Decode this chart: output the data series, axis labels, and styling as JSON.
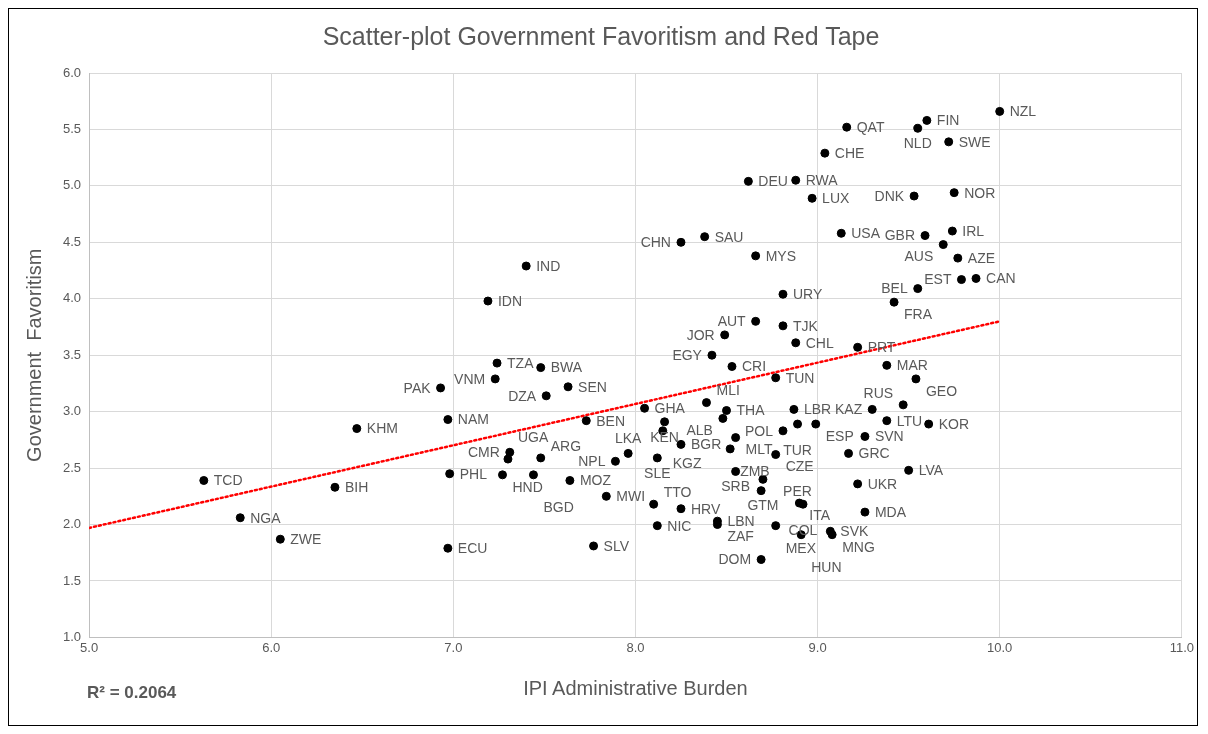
{
  "chart_data": {
    "type": "scatter",
    "title": "Scatter-plot Government Favoritism and Red Tape",
    "xlabel": "IPI Administrative Burden",
    "ylabel": "Government  Favoritism",
    "xlim": [
      5,
      11
    ],
    "xticks": [
      {
        "value": 5,
        "label": "5.0"
      },
      {
        "value": 6,
        "label": "6.0"
      },
      {
        "value": 7,
        "label": "7.0"
      },
      {
        "value": 8,
        "label": "8.0"
      },
      {
        "value": 9,
        "label": "9.0"
      },
      {
        "value": 10,
        "label": "10.0"
      },
      {
        "value": 11,
        "label": "11.0"
      }
    ],
    "ylim": [
      1,
      6
    ],
    "yticks": [
      {
        "value": 1,
        "label": "1.0"
      },
      {
        "value": 1.5,
        "label": "1.5"
      },
      {
        "value": 2,
        "label": "2.0"
      },
      {
        "value": 2.5,
        "label": "2.5"
      },
      {
        "value": 3,
        "label": "3.0"
      },
      {
        "value": 3.5,
        "label": "3.5"
      },
      {
        "value": 4,
        "label": "4.0"
      },
      {
        "value": 4.5,
        "label": "4.5"
      },
      {
        "value": 5,
        "label": "5.0"
      },
      {
        "value": 5.5,
        "label": "5.5"
      },
      {
        "value": 6,
        "label": "6.0"
      }
    ],
    "grid": true,
    "legend": false,
    "marker": "circle",
    "annotations": [
      "R² = 0.2064"
    ],
    "series": [
      {
        "type": "scatter",
        "color": "#000000",
        "x": [
          10.0,
          9.6,
          9.16,
          9.55,
          9.72,
          9.04,
          8.62,
          8.88,
          8.97,
          9.53,
          9.75,
          9.13,
          8.38,
          8.25,
          9.59,
          9.74,
          9.69,
          9.77,
          9.79,
          9.87,
          8.66,
          7.4,
          7.19,
          8.81,
          9.55,
          9.42,
          8.66,
          8.81,
          8.49,
          8.88,
          9.22,
          8.42,
          7.24,
          7.48,
          8.53,
          7.23,
          6.93,
          7.63,
          7.51,
          8.77,
          9.38,
          9.54,
          8.05,
          8.39,
          8.5,
          8.48,
          8.87,
          9.47,
          9.3,
          9.38,
          9.61,
          8.99,
          8.89,
          8.81,
          9.26,
          6.97,
          6.47,
          7.73,
          8.16,
          8.15,
          8.25,
          8.55,
          8.52,
          7.96,
          8.12,
          7.89,
          8.77,
          9.17,
          7.31,
          7.3,
          7.48,
          6.98,
          7.27,
          7.44,
          7.64,
          7.84,
          5.63,
          6.35,
          5.83,
          6.05,
          6.97,
          7.77,
          9.5,
          8.55,
          8.7,
          8.69,
          9.22,
          8.9,
          8.92,
          9.26,
          8.1,
          8.25,
          8.12,
          8.45,
          8.45,
          8.77,
          9.07,
          8.91,
          9.08,
          8.69
        ],
        "values": [
          5.66,
          5.58,
          5.52,
          5.51,
          5.39,
          5.29,
          5.04,
          5.05,
          4.89,
          4.91,
          4.94,
          4.58,
          4.55,
          4.5,
          4.56,
          4.6,
          4.48,
          4.36,
          4.17,
          4.18,
          4.38,
          4.29,
          3.98,
          4.04,
          4.09,
          3.97,
          3.8,
          3.76,
          3.68,
          3.61,
          3.57,
          3.5,
          3.43,
          3.39,
          3.4,
          3.29,
          3.21,
          3.22,
          3.14,
          3.3,
          3.41,
          3.29,
          3.03,
          3.08,
          3.01,
          2.94,
          3.02,
          3.06,
          3.02,
          2.92,
          2.89,
          2.89,
          2.89,
          2.83,
          2.78,
          2.93,
          2.85,
          2.92,
          2.91,
          2.83,
          2.71,
          2.77,
          2.67,
          2.63,
          2.59,
          2.56,
          2.62,
          2.63,
          2.64,
          2.58,
          2.59,
          2.45,
          2.44,
          2.44,
          2.39,
          2.25,
          2.39,
          2.33,
          2.06,
          1.87,
          1.79,
          1.81,
          2.48,
          2.47,
          2.4,
          2.3,
          2.36,
          2.19,
          2.18,
          2.11,
          2.18,
          2.14,
          1.99,
          2.03,
          2.0,
          1.99,
          1.94,
          1.91,
          1.91,
          1.69
        ],
        "value_labels": [
          "NZL",
          "FIN",
          "QAT",
          "NLD",
          "SWE",
          "CHE",
          "DEU",
          "RWA",
          "LUX",
          "DNK",
          "NOR",
          "USA",
          "SAU",
          "CHN",
          "GBR",
          "IRL",
          "AUS",
          "AZE",
          "EST",
          "CAN",
          "MYS",
          "IND",
          "IDN",
          "URY",
          "BEL",
          "FRA",
          "AUT",
          "TJK",
          "JOR",
          "CHL",
          "PRT",
          "EGY",
          "TZA",
          "BWA",
          "CRI",
          "VNM",
          "PAK",
          "SEN",
          "DZA",
          "TUN",
          "MAR",
          "GEO",
          "GHA",
          "MLI",
          "THA",
          "ALB",
          "LBR",
          "RUS",
          "KAZ",
          "LTU",
          "KOR",
          "ESP",
          "TUR",
          "POL",
          "SVN",
          "NAM",
          "KHM",
          "BEN",
          "KEN",
          "KGZ",
          "BGR",
          "MLT",
          "ZMB",
          "LKA",
          "SLE",
          "NPL",
          "CZE",
          "GRC",
          "CMR",
          "UGA",
          "ARG",
          "PHL",
          "HND",
          "BGD",
          "MOZ",
          "MWI",
          "TCD",
          "BIH",
          "NGA",
          "ZWE",
          "ECU",
          "SLV",
          "LVA",
          "SRB",
          "GTM",
          "PER",
          "UKR",
          "ITA",
          "COL",
          "MDA",
          "TTO",
          "HRV",
          "NIC",
          "LBN",
          "ZAF",
          "MEX",
          "SVK",
          "HUN",
          "MNG",
          "DOM"
        ]
      },
      {
        "type": "line",
        "color": "#ff0000",
        "line_style": "dotted",
        "marker": "none",
        "x": [
          5,
          10
        ],
        "values": [
          1.97,
          3.8
        ]
      }
    ]
  }
}
